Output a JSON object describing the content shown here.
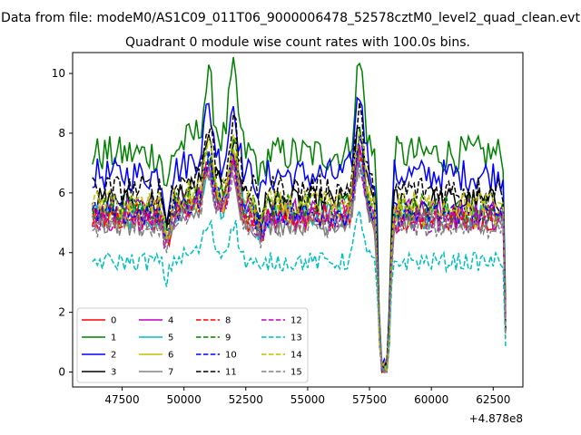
{
  "figure": {
    "suptitle": "Data from file: modeM0/AS1C09_011T06_9000006478_52578cztM0_level2_quad_clean.evt",
    "title": "Quadrant 0 module wise count rates with 100.0s bins.",
    "x_offset_label": "+4.878e8"
  },
  "chart_data": {
    "type": "line",
    "title": "Quadrant 0 module wise count rates with 100.0s bins.",
    "xlabel": "",
    "ylabel": "",
    "xlim": [
      45500,
      63700
    ],
    "ylim": [
      -0.5,
      10.7
    ],
    "x_ticks": [
      47500,
      50000,
      52500,
      55000,
      57500,
      60000,
      62500
    ],
    "y_ticks": [
      0,
      2,
      4,
      6,
      8,
      10
    ],
    "x_start": 46300,
    "x_end": 63000,
    "bin_size": 100,
    "grid": false,
    "legend": {
      "placement": "lower-left",
      "columns": 4
    },
    "series": [
      {
        "name": "0",
        "color": "#ff0000",
        "dash": "solid",
        "base": 5.1
      },
      {
        "name": "1",
        "color": "#008000",
        "dash": "solid",
        "base": 7.3
      },
      {
        "name": "2",
        "color": "#0000ff",
        "dash": "solid",
        "base": 6.6
      },
      {
        "name": "3",
        "color": "#000000",
        "dash": "solid",
        "base": 5.7
      },
      {
        "name": "4",
        "color": "#bf00bf",
        "dash": "solid",
        "base": 5.4
      },
      {
        "name": "5",
        "color": "#00bfbf",
        "dash": "solid",
        "base": 5.2
      },
      {
        "name": "6",
        "color": "#bfbf00",
        "dash": "solid",
        "base": 5.3
      },
      {
        "name": "7",
        "color": "#808080",
        "dash": "solid",
        "base": 5.0
      },
      {
        "name": "8",
        "color": "#ff0000",
        "dash": "dashed",
        "base": 5.2
      },
      {
        "name": "9",
        "color": "#008000",
        "dash": "dashed",
        "base": 5.5
      },
      {
        "name": "10",
        "color": "#0000ff",
        "dash": "dashed",
        "base": 5.3
      },
      {
        "name": "11",
        "color": "#000000",
        "dash": "dashed",
        "base": 6.1
      },
      {
        "name": "12",
        "color": "#bf00bf",
        "dash": "dashed",
        "base": 5.1
      },
      {
        "name": "13",
        "color": "#00bfbf",
        "dash": "dashed",
        "base": 3.7
      },
      {
        "name": "14",
        "color": "#bfbf00",
        "dash": "dashed",
        "base": 5.6
      },
      {
        "name": "15",
        "color": "#808080",
        "dash": "dashed",
        "base": 4.9
      }
    ],
    "events": [
      {
        "x": 49300,
        "depth": 1.0
      },
      {
        "x": 53100,
        "depth": 0.6
      },
      {
        "x": 58100,
        "depth": 10.0
      },
      {
        "x": 63000,
        "depth": 4.5
      }
    ],
    "peaks": [
      {
        "x": 51000,
        "height": 1.3
      },
      {
        "x": 52000,
        "height": 1.8
      },
      {
        "x": 57100,
        "height": 2.2
      }
    ]
  }
}
